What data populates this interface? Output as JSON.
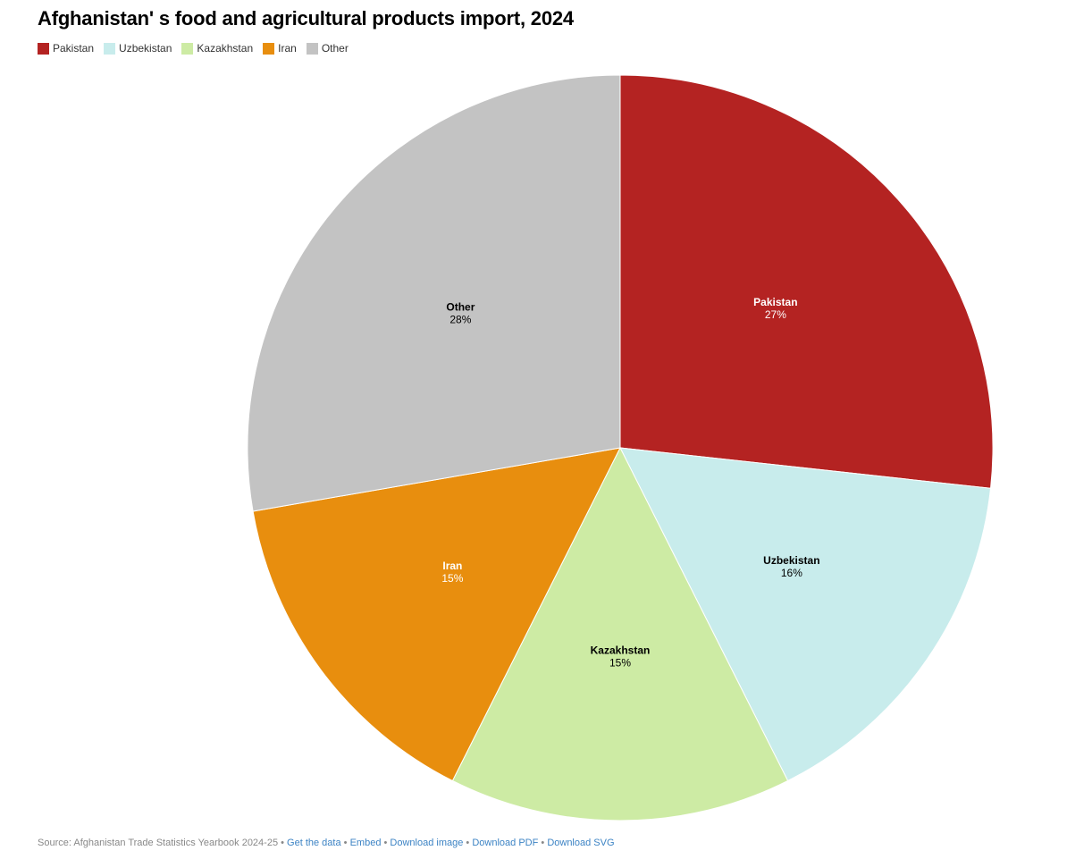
{
  "title": "Afghanistan' s food and agricultural products import, 2024",
  "legend": [
    {
      "name": "Pakistan",
      "color": "#b42322"
    },
    {
      "name": "Uzbekistan",
      "color": "#c8ecec"
    },
    {
      "name": "Kazakhstan",
      "color": "#cdeba4"
    },
    {
      "name": "Iran",
      "color": "#e88e0e"
    },
    {
      "name": "Other",
      "color": "#c3c3c3"
    }
  ],
  "chart_data": {
    "type": "pie",
    "title": "Afghanistan' s food and agricultural products import, 2024",
    "legend_position": "top-left",
    "slices": [
      {
        "label": "Pakistan",
        "value": 27,
        "value_label": "27%",
        "color": "#b42322",
        "text_color": "#ffffff"
      },
      {
        "label": "Uzbekistan",
        "value": 16,
        "value_label": "16%",
        "color": "#c8ecec",
        "text_color": "#000000"
      },
      {
        "label": "Kazakhstan",
        "value": 15,
        "value_label": "15%",
        "color": "#cdeba4",
        "text_color": "#000000"
      },
      {
        "label": "Iran",
        "value": 15,
        "value_label": "15%",
        "color": "#e88e0e",
        "text_color": "#ffffff"
      },
      {
        "label": "Other",
        "value": 28,
        "value_label": "28%",
        "color": "#c3c3c3",
        "text_color": "#000000"
      }
    ]
  },
  "footer": {
    "source": "Source: Afghanistan Trade Statistics Yearbook 2024-25 •",
    "get_data": "Get the data",
    "sep": "•",
    "embed": "Embed",
    "sep2": " •",
    "download_image": "Download image",
    "download_pdf": "Download PDF",
    "download_svg": "Download SVG"
  }
}
